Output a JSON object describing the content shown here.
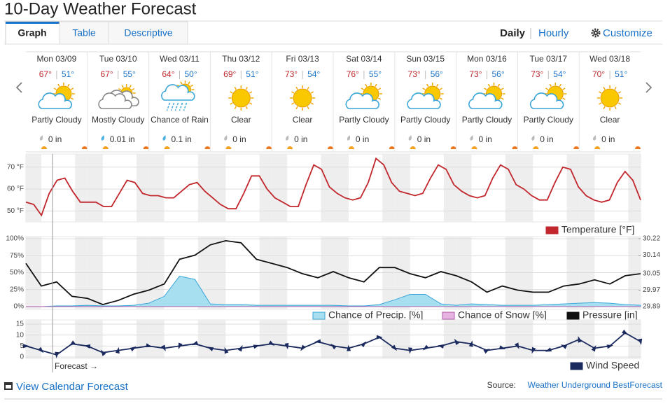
{
  "header": {
    "title": "10-Day Weather Forecast",
    "tabs": [
      "Graph",
      "Table",
      "Descriptive"
    ],
    "views": [
      "Daily",
      "Hourly"
    ],
    "customize": "Customize"
  },
  "days": [
    {
      "date": "Mon 03/09",
      "high": "67°",
      "low": "51°",
      "condition": "Partly Cloudy",
      "precip": "0 in"
    },
    {
      "date": "Tue 03/10",
      "high": "67°",
      "low": "55°",
      "condition": "Mostly Cloudy",
      "precip": "0.01 in"
    },
    {
      "date": "Wed 03/11",
      "high": "64°",
      "low": "50°",
      "condition": "Chance of Rain",
      "precip": "0.1 in"
    },
    {
      "date": "Thu 03/12",
      "high": "69°",
      "low": "51°",
      "condition": "Clear",
      "precip": "0 in"
    },
    {
      "date": "Fri 03/13",
      "high": "73°",
      "low": "54°",
      "condition": "Clear",
      "precip": "0 in"
    },
    {
      "date": "Sat 03/14",
      "high": "76°",
      "low": "55°",
      "condition": "Partly Cloudy",
      "precip": "0 in"
    },
    {
      "date": "Sun 03/15",
      "high": "73°",
      "low": "56°",
      "condition": "Partly Cloudy",
      "precip": "0 in"
    },
    {
      "date": "Mon 03/16",
      "high": "73°",
      "low": "56°",
      "condition": "Partly Cloudy",
      "precip": "0 in"
    },
    {
      "date": "Tue 03/17",
      "high": "73°",
      "low": "54°",
      "condition": "Partly Cloudy",
      "precip": "0 in"
    },
    {
      "date": "Wed 03/18",
      "high": "70°",
      "low": "51°",
      "condition": "Clear",
      "precip": "0 in"
    }
  ],
  "chart_data": [
    {
      "type": "line",
      "ylim": [
        45,
        76
      ],
      "yticks": [
        {
          "value": 50,
          "label": "50 °F"
        },
        {
          "value": 60,
          "label": "60 °F"
        },
        {
          "value": 70,
          "label": "70 °F"
        }
      ],
      "series": [
        {
          "name": "Temperature [°F]",
          "color": "#c1272d",
          "values": [
            54,
            53,
            48,
            58,
            64,
            65,
            59,
            54,
            54,
            54,
            52,
            52,
            58,
            64,
            63,
            58,
            57,
            57,
            56,
            56,
            59,
            62,
            63,
            59,
            56,
            53,
            51,
            51,
            58,
            66,
            66,
            60,
            56,
            54,
            52,
            52,
            62,
            71,
            69,
            61,
            58,
            56,
            55,
            56,
            63,
            74,
            71,
            63,
            59,
            58,
            57,
            58,
            65,
            71,
            69,
            62,
            59,
            57,
            56,
            57,
            65,
            71,
            69,
            62,
            60,
            57,
            55,
            55,
            63,
            70,
            69,
            61,
            57,
            55,
            54,
            55,
            63,
            68,
            64,
            55
          ]
        }
      ]
    },
    {
      "type": "combo",
      "ylim": [
        0,
        100
      ],
      "yticks": [
        {
          "value": 0,
          "label": "0%"
        },
        {
          "value": 25,
          "label": "25%"
        },
        {
          "value": 50,
          "label": "50%"
        },
        {
          "value": 75,
          "label": "75%"
        },
        {
          "value": 100,
          "label": "100%"
        }
      ],
      "y2lim": [
        29.89,
        30.22
      ],
      "y2ticks": [
        29.89,
        29.97,
        30.05,
        30.14,
        30.22
      ],
      "series": [
        {
          "name": "Chance of Precip. [%]",
          "type": "area",
          "color": "#a8dff0",
          "stroke": "#3aa6d8",
          "values": [
            0,
            0,
            1,
            1,
            2,
            1,
            1,
            2,
            5,
            15,
            45,
            40,
            4,
            3,
            3,
            2,
            2,
            2,
            2,
            2,
            2,
            1,
            1,
            3,
            10,
            18,
            18,
            4,
            2,
            4,
            3,
            2,
            2,
            2,
            3,
            4,
            5,
            6,
            5,
            3,
            2
          ]
        },
        {
          "name": "Chance of Snow [%]",
          "type": "area",
          "color": "#e7b3e0",
          "stroke": "#b05aa8",
          "values": [
            0,
            0,
            0,
            0,
            0,
            0,
            0,
            0,
            0,
            0,
            0,
            0,
            0,
            0,
            0,
            0,
            0,
            0,
            0,
            0,
            0,
            0,
            0,
            0,
            0,
            0,
            0,
            0,
            0,
            0,
            0,
            0,
            0,
            0,
            0,
            0,
            0,
            0,
            0,
            0,
            0
          ]
        },
        {
          "name": "Pressure [in]",
          "type": "line",
          "axis": "y2",
          "color": "#111111",
          "values": [
            30.1,
            29.99,
            30.01,
            29.94,
            29.93,
            29.9,
            29.92,
            29.95,
            29.97,
            30.0,
            30.12,
            30.14,
            30.19,
            30.21,
            30.2,
            30.12,
            30.1,
            30.08,
            30.05,
            30.03,
            30.06,
            30.03,
            30.01,
            30.08,
            30.08,
            30.05,
            30.03,
            30.06,
            30.04,
            30.01,
            29.96,
            29.99,
            29.97,
            29.96,
            29.96,
            29.99,
            30.0,
            30.02,
            30.0,
            30.04,
            30.05
          ]
        }
      ]
    },
    {
      "type": "line",
      "ylim": [
        0,
        15
      ],
      "yticks": [
        0,
        5,
        10,
        15
      ],
      "markers": true,
      "series": [
        {
          "name": "Wind Speed",
          "color": "#1b2a5e",
          "values": [
            5,
            3,
            1,
            6,
            5,
            2,
            3,
            4,
            5,
            4,
            5,
            6,
            4,
            3,
            4,
            5,
            6,
            5,
            4,
            7,
            5,
            4,
            6,
            9,
            4,
            3,
            4,
            5,
            7,
            6,
            3,
            4,
            5,
            3,
            3,
            5,
            8,
            4,
            5,
            11,
            7
          ]
        }
      ]
    }
  ],
  "forecast_marker": "Forecast →",
  "footer": {
    "link": "View Calendar Forecast",
    "source_label": "Source:",
    "source": "Weather Underground BestForecast"
  }
}
